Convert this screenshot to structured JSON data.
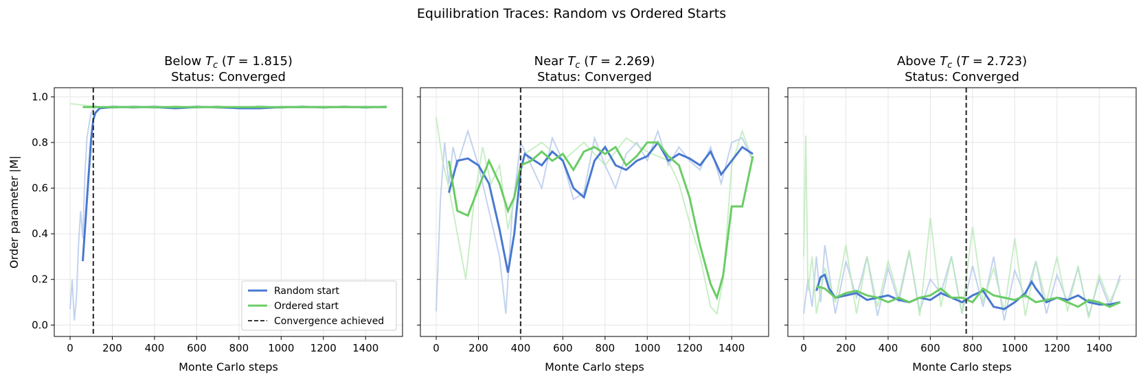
{
  "figure": {
    "suptitle": "Equilibration Traces: Random vs Ordered Starts"
  },
  "legend": {
    "random": "Random start",
    "ordered": "Ordered start",
    "convergence": "Convergence achieved"
  },
  "colors": {
    "random": "#4878d0",
    "random_raw": "#aec4ea",
    "ordered": "#6acc64",
    "ordered_raw": "#b7e8b3",
    "conv": "#333333"
  },
  "chart_data": [
    {
      "type": "line",
      "title_line1": "Below T_c (T = 1.815)",
      "title_parts": {
        "pre": "Below ",
        "post": " (",
        "temp": "1.815",
        "close": ")"
      },
      "title_line2": "Status: Converged",
      "xlabel": "Monte Carlo steps",
      "ylabel": "Order parameter |M|",
      "xlim": [
        -75,
        1575
      ],
      "ylim": [
        -0.05,
        1.04
      ],
      "xticks": [
        0,
        200,
        400,
        600,
        800,
        1000,
        1200,
        1400
      ],
      "yticks": [
        0.0,
        0.2,
        0.4,
        0.6,
        0.8,
        1.0
      ],
      "convergence_step": 110,
      "legend_position": "lower right",
      "series": [
        {
          "name": "Random start",
          "x": [
            60,
            80,
            100,
            110,
            120,
            140,
            200,
            300,
            400,
            500,
            600,
            700,
            800,
            900,
            1000,
            1100,
            1200,
            1300,
            1400,
            1500
          ],
          "y": [
            0.28,
            0.55,
            0.82,
            0.9,
            0.93,
            0.95,
            0.955,
            0.955,
            0.955,
            0.95,
            0.955,
            0.955,
            0.95,
            0.95,
            0.955,
            0.955,
            0.955,
            0.955,
            0.955,
            0.955
          ]
        },
        {
          "name": "Ordered start",
          "x": [
            60,
            200,
            400,
            600,
            800,
            1000,
            1200,
            1400,
            1500
          ],
          "y": [
            0.955,
            0.955,
            0.955,
            0.955,
            0.955,
            0.955,
            0.955,
            0.955,
            0.955
          ]
        }
      ],
      "raw_random": {
        "x": [
          0,
          10,
          20,
          30,
          40,
          50,
          60,
          70,
          80,
          90,
          100,
          120,
          150,
          200,
          300,
          400,
          500,
          600,
          700,
          800,
          900,
          1000,
          1100,
          1200,
          1300,
          1400,
          1500
        ],
        "y": [
          0.07,
          0.2,
          0.02,
          0.12,
          0.35,
          0.5,
          0.38,
          0.66,
          0.82,
          0.88,
          0.93,
          0.96,
          0.95,
          0.96,
          0.95,
          0.96,
          0.95,
          0.96,
          0.95,
          0.95,
          0.96,
          0.95,
          0.96,
          0.95,
          0.96,
          0.95,
          0.96
        ]
      },
      "raw_ordered": {
        "x": [
          0,
          100,
          200,
          300,
          400,
          500,
          600,
          700,
          800,
          900,
          1000,
          1100,
          1200,
          1300,
          1400,
          1500
        ],
        "y": [
          0.97,
          0.96,
          0.95,
          0.96,
          0.95,
          0.96,
          0.95,
          0.96,
          0.95,
          0.96,
          0.95,
          0.96,
          0.95,
          0.96,
          0.95,
          0.96
        ]
      }
    },
    {
      "type": "line",
      "title_parts": {
        "pre": "Near ",
        "post": " (",
        "temp": "2.269",
        "close": ")"
      },
      "title_line2": "Status: Converged",
      "xlabel": "Monte Carlo steps",
      "xlim": [
        -75,
        1575
      ],
      "ylim": [
        -0.05,
        1.04
      ],
      "xticks": [
        0,
        200,
        400,
        600,
        800,
        1000,
        1200,
        1400
      ],
      "yticks": [
        0.0,
        0.2,
        0.4,
        0.6,
        0.8,
        1.0
      ],
      "convergence_step": 400,
      "series": [
        {
          "name": "Random start",
          "x": [
            60,
            100,
            150,
            200,
            250,
            300,
            340,
            370,
            400,
            420,
            450,
            500,
            550,
            600,
            650,
            700,
            750,
            800,
            850,
            900,
            950,
            1000,
            1050,
            1100,
            1150,
            1200,
            1250,
            1300,
            1350,
            1400,
            1450,
            1500
          ],
          "y": [
            0.58,
            0.72,
            0.73,
            0.7,
            0.62,
            0.42,
            0.23,
            0.4,
            0.68,
            0.75,
            0.73,
            0.7,
            0.76,
            0.72,
            0.6,
            0.56,
            0.72,
            0.78,
            0.7,
            0.68,
            0.72,
            0.74,
            0.8,
            0.72,
            0.75,
            0.73,
            0.7,
            0.76,
            0.66,
            0.72,
            0.78,
            0.75
          ]
        },
        {
          "name": "Ordered start",
          "x": [
            60,
            100,
            150,
            200,
            250,
            300,
            340,
            370,
            400,
            450,
            500,
            550,
            600,
            650,
            700,
            750,
            800,
            850,
            900,
            950,
            1000,
            1050,
            1100,
            1150,
            1200,
            1250,
            1300,
            1330,
            1360,
            1400,
            1450,
            1500
          ],
          "y": [
            0.72,
            0.5,
            0.48,
            0.6,
            0.72,
            0.62,
            0.5,
            0.56,
            0.7,
            0.72,
            0.76,
            0.72,
            0.75,
            0.68,
            0.76,
            0.78,
            0.75,
            0.78,
            0.7,
            0.74,
            0.8,
            0.8,
            0.74,
            0.7,
            0.56,
            0.35,
            0.18,
            0.12,
            0.22,
            0.52,
            0.52,
            0.74
          ]
        }
      ],
      "raw_random": {
        "x": [
          0,
          20,
          40,
          60,
          80,
          100,
          150,
          200,
          250,
          300,
          330,
          360,
          400,
          450,
          500,
          550,
          600,
          650,
          700,
          750,
          800,
          850,
          900,
          950,
          1000,
          1050,
          1100,
          1150,
          1200,
          1250,
          1300,
          1350,
          1400,
          1450,
          1500
        ],
        "y": [
          0.06,
          0.55,
          0.8,
          0.62,
          0.78,
          0.7,
          0.85,
          0.7,
          0.5,
          0.3,
          0.05,
          0.5,
          0.8,
          0.7,
          0.6,
          0.82,
          0.72,
          0.55,
          0.58,
          0.82,
          0.7,
          0.6,
          0.75,
          0.8,
          0.72,
          0.85,
          0.7,
          0.78,
          0.72,
          0.68,
          0.78,
          0.62,
          0.8,
          0.82,
          0.72
        ]
      },
      "raw_ordered": {
        "x": [
          0,
          30,
          60,
          100,
          140,
          180,
          220,
          260,
          300,
          340,
          380,
          420,
          500,
          600,
          700,
          800,
          900,
          1000,
          1100,
          1150,
          1200,
          1250,
          1300,
          1330,
          1360,
          1400,
          1450,
          1500
        ],
        "y": [
          0.91,
          0.72,
          0.6,
          0.4,
          0.2,
          0.55,
          0.78,
          0.62,
          0.7,
          0.42,
          0.6,
          0.75,
          0.8,
          0.72,
          0.8,
          0.7,
          0.82,
          0.76,
          0.72,
          0.62,
          0.45,
          0.3,
          0.08,
          0.05,
          0.2,
          0.7,
          0.85,
          0.72
        ]
      }
    },
    {
      "type": "line",
      "title_parts": {
        "pre": "Above ",
        "post": " (",
        "temp": "2.723",
        "close": ")"
      },
      "title_line2": "Status: Converged",
      "xlabel": "Monte Carlo steps",
      "xlim": [
        -75,
        1575
      ],
      "ylim": [
        -0.05,
        1.04
      ],
      "xticks": [
        0,
        200,
        400,
        600,
        800,
        1000,
        1200,
        1400
      ],
      "yticks": [
        0.0,
        0.2,
        0.4,
        0.6,
        0.8,
        1.0
      ],
      "convergence_step": 770,
      "series": [
        {
          "name": "Random start",
          "x": [
            60,
            80,
            100,
            120,
            150,
            200,
            250,
            300,
            350,
            400,
            450,
            500,
            550,
            600,
            650,
            700,
            750,
            800,
            850,
            900,
            950,
            1000,
            1050,
            1080,
            1100,
            1150,
            1200,
            1250,
            1300,
            1350,
            1400,
            1450,
            1500
          ],
          "y": [
            0.15,
            0.21,
            0.22,
            0.16,
            0.12,
            0.13,
            0.14,
            0.11,
            0.12,
            0.13,
            0.11,
            0.1,
            0.12,
            0.11,
            0.14,
            0.12,
            0.1,
            0.13,
            0.15,
            0.08,
            0.07,
            0.1,
            0.14,
            0.19,
            0.16,
            0.1,
            0.12,
            0.11,
            0.13,
            0.1,
            0.09,
            0.09,
            0.1
          ]
        },
        {
          "name": "Ordered start",
          "x": [
            60,
            100,
            150,
            200,
            250,
            300,
            350,
            400,
            450,
            500,
            550,
            600,
            650,
            700,
            750,
            800,
            850,
            900,
            950,
            1000,
            1050,
            1100,
            1150,
            1200,
            1250,
            1300,
            1350,
            1400,
            1450,
            1500
          ],
          "y": [
            0.17,
            0.16,
            0.12,
            0.14,
            0.15,
            0.13,
            0.12,
            0.1,
            0.12,
            0.1,
            0.12,
            0.13,
            0.16,
            0.12,
            0.12,
            0.1,
            0.16,
            0.13,
            0.12,
            0.11,
            0.13,
            0.1,
            0.11,
            0.12,
            0.1,
            0.08,
            0.11,
            0.1,
            0.08,
            0.1
          ]
        }
      ],
      "raw_random": {
        "x": [
          0,
          20,
          40,
          60,
          80,
          100,
          150,
          200,
          250,
          300,
          350,
          400,
          450,
          500,
          550,
          600,
          650,
          700,
          750,
          800,
          850,
          900,
          950,
          1000,
          1050,
          1100,
          1150,
          1200,
          1250,
          1300,
          1350,
          1400,
          1450,
          1500
        ],
        "y": [
          0.05,
          0.2,
          0.08,
          0.3,
          0.1,
          0.35,
          0.05,
          0.28,
          0.12,
          0.3,
          0.04,
          0.25,
          0.1,
          0.32,
          0.06,
          0.2,
          0.14,
          0.3,
          0.05,
          0.26,
          0.08,
          0.3,
          0.02,
          0.24,
          0.12,
          0.28,
          0.05,
          0.22,
          0.1,
          0.25,
          0.04,
          0.2,
          0.08,
          0.22
        ]
      },
      "raw_ordered": {
        "x": [
          0,
          10,
          20,
          40,
          60,
          100,
          150,
          200,
          250,
          300,
          350,
          400,
          450,
          500,
          550,
          600,
          650,
          700,
          750,
          800,
          850,
          900,
          950,
          1000,
          1050,
          1100,
          1150,
          1200,
          1250,
          1300,
          1350,
          1400,
          1450,
          1500
        ],
        "y": [
          0.3,
          0.83,
          0.15,
          0.3,
          0.05,
          0.25,
          0.1,
          0.35,
          0.05,
          0.3,
          0.08,
          0.28,
          0.12,
          0.33,
          0.04,
          0.47,
          0.08,
          0.3,
          0.05,
          0.43,
          0.1,
          0.25,
          0.06,
          0.38,
          0.04,
          0.28,
          0.1,
          0.3,
          0.06,
          0.26,
          0.03,
          0.22,
          0.1,
          0.2
        ]
      }
    }
  ]
}
